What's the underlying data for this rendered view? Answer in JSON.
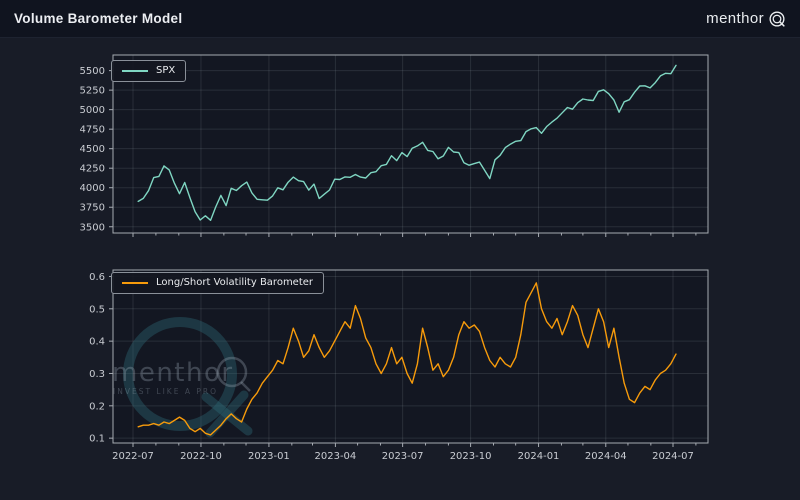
{
  "header": {
    "title": "Volume Barometer Model",
    "brand": "menthor",
    "brand_q": "Q"
  },
  "watermark": {
    "text": "menthor",
    "q": "Q",
    "subtext": "INVEST LIKE A PRO"
  },
  "colors": {
    "page_background": "#181c27",
    "header_background": "#10141f",
    "plot_background": "#131722",
    "grid": "rgba(171,178,186,0.15)",
    "spine": "#a6abb2",
    "tick_label": "#c9ccd2",
    "spx_line": "#7fd6c2",
    "volatility_line": "#f79b0b",
    "watermark_ring": "rgba(44,106,118,0.40)",
    "watermark_text": "rgba(158,172,182,0.32)"
  },
  "chart_data": [
    {
      "type": "line",
      "name": "SPX price",
      "legend": "SPX",
      "color": "#7fd6c2",
      "x_start": "2022-07-08",
      "x_step_days": 7,
      "values": [
        3825,
        3863,
        3962,
        4130,
        4145,
        4280,
        4228,
        4058,
        3924,
        4067,
        3873,
        3693,
        3586,
        3640,
        3583,
        3753,
        3901,
        3771,
        3993,
        3965,
        4026,
        4072,
        3934,
        3852,
        3845,
        3840,
        3895,
        3999,
        3973,
        4071,
        4136,
        4090,
        4079,
        3970,
        4046,
        3862,
        3917,
        3971,
        4109,
        4105,
        4138,
        4134,
        4169,
        4136,
        4124,
        4192,
        4205,
        4282,
        4299,
        4410,
        4348,
        4450,
        4399,
        4505,
        4536,
        4582,
        4478,
        4464,
        4370,
        4406,
        4516,
        4457,
        4450,
        4320,
        4288,
        4309,
        4328,
        4224,
        4117,
        4358,
        4415,
        4514,
        4559,
        4595,
        4604,
        4719,
        4755,
        4770,
        4697,
        4784,
        4840,
        4891,
        4959,
        5027,
        5006,
        5089,
        5137,
        5124,
        5117,
        5234,
        5254,
        5204,
        5123,
        4967,
        5100,
        5128,
        5223,
        5303,
        5305,
        5278,
        5347,
        5432,
        5465,
        5460,
        5567
      ],
      "ylim": [
        3420,
        5700
      ],
      "yticks": [
        3500,
        3750,
        4000,
        4250,
        4500,
        4750,
        5000,
        5250,
        5500
      ],
      "ytick_decimals": 0,
      "xticks": [
        "2022-07",
        "2022-10",
        "2023-01",
        "2023-04",
        "2023-07",
        "2023-10",
        "2024-01",
        "2024-04",
        "2024-07"
      ],
      "show_x_labels": false,
      "grid": true,
      "legend_position": "upper-left",
      "xlabel": "",
      "ylabel": ""
    },
    {
      "type": "line",
      "name": "Long/Short Volatility Barometer",
      "legend": "Long/Short Volatility Barometer",
      "color": "#f79b0b",
      "x_start": "2022-07-08",
      "x_step_days": 7,
      "values": [
        0.135,
        0.14,
        0.14,
        0.145,
        0.14,
        0.15,
        0.145,
        0.155,
        0.165,
        0.155,
        0.13,
        0.12,
        0.13,
        0.115,
        0.11,
        0.125,
        0.14,
        0.16,
        0.175,
        0.16,
        0.15,
        0.19,
        0.22,
        0.24,
        0.27,
        0.29,
        0.31,
        0.34,
        0.33,
        0.38,
        0.44,
        0.4,
        0.35,
        0.37,
        0.42,
        0.38,
        0.35,
        0.37,
        0.4,
        0.43,
        0.46,
        0.44,
        0.51,
        0.47,
        0.41,
        0.38,
        0.33,
        0.3,
        0.33,
        0.38,
        0.33,
        0.35,
        0.3,
        0.27,
        0.33,
        0.44,
        0.38,
        0.31,
        0.33,
        0.29,
        0.31,
        0.35,
        0.42,
        0.46,
        0.44,
        0.45,
        0.43,
        0.38,
        0.34,
        0.32,
        0.35,
        0.33,
        0.32,
        0.35,
        0.42,
        0.52,
        0.55,
        0.58,
        0.5,
        0.46,
        0.44,
        0.47,
        0.42,
        0.46,
        0.51,
        0.48,
        0.42,
        0.38,
        0.44,
        0.5,
        0.46,
        0.38,
        0.44,
        0.35,
        0.27,
        0.22,
        0.21,
        0.24,
        0.26,
        0.25,
        0.28,
        0.3,
        0.31,
        0.33,
        0.36
      ],
      "ylim": [
        0.085,
        0.62
      ],
      "yticks": [
        0.1,
        0.2,
        0.3,
        0.4,
        0.5,
        0.6
      ],
      "ytick_decimals": 1,
      "xticks": [
        "2022-07",
        "2022-10",
        "2023-01",
        "2023-04",
        "2023-07",
        "2023-10",
        "2024-01",
        "2024-04",
        "2024-07"
      ],
      "show_x_labels": true,
      "grid": true,
      "legend_position": "upper-left",
      "xlabel": "",
      "ylabel": ""
    }
  ]
}
